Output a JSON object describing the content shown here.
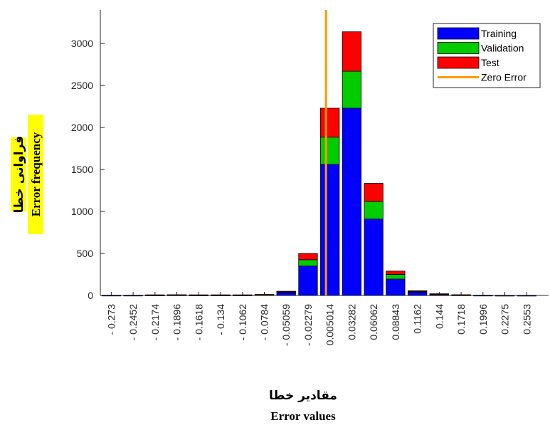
{
  "chart_data": {
    "type": "bar",
    "stacked": true,
    "xlabel_fa": "مقادیر خطا",
    "xlabel": "Error values",
    "ylabel_fa": "فراوانی خطا",
    "ylabel": "Error frequency",
    "ylim": [
      0,
      3400
    ],
    "yticks": [
      0,
      500,
      1000,
      1500,
      2000,
      2500,
      3000
    ],
    "categories": [
      "- 0.273",
      "- 0.2452",
      "- 0.2174",
      "- 0.1896",
      "- 0.1618",
      "- 0.134",
      "- 0.1062",
      "- 0.0784",
      "- 0.05059",
      "- 0.02279",
      "0.005014",
      "0.03282",
      "0.06062",
      "0.08843",
      "0.1162",
      "0.144",
      "0.1718",
      "0.1996",
      "0.2275",
      "0.2553"
    ],
    "series": [
      {
        "name": "Training",
        "color": "#0000ff",
        "values": [
          2,
          2,
          5,
          6,
          5,
          5,
          5,
          8,
          38,
          350,
          1560,
          2230,
          910,
          195,
          40,
          14,
          6,
          2,
          1,
          1
        ]
      },
      {
        "name": "Validation",
        "color": "#00cc00",
        "values": [
          0,
          0,
          1,
          1,
          1,
          1,
          1,
          2,
          6,
          75,
          325,
          440,
          210,
          55,
          8,
          3,
          1,
          0,
          0,
          0
        ]
      },
      {
        "name": "Test",
        "color": "#ff0000",
        "values": [
          0,
          0,
          1,
          1,
          1,
          1,
          1,
          2,
          6,
          75,
          345,
          470,
          215,
          40,
          8,
          3,
          1,
          0,
          0,
          0
        ]
      }
    ],
    "zero_error": {
      "name": "Zero Error",
      "color": "#ff9900",
      "value": 0
    },
    "legend": {
      "placement": "top-right",
      "entries": [
        "Training",
        "Validation",
        "Test",
        "Zero Error"
      ]
    },
    "grid": false
  }
}
